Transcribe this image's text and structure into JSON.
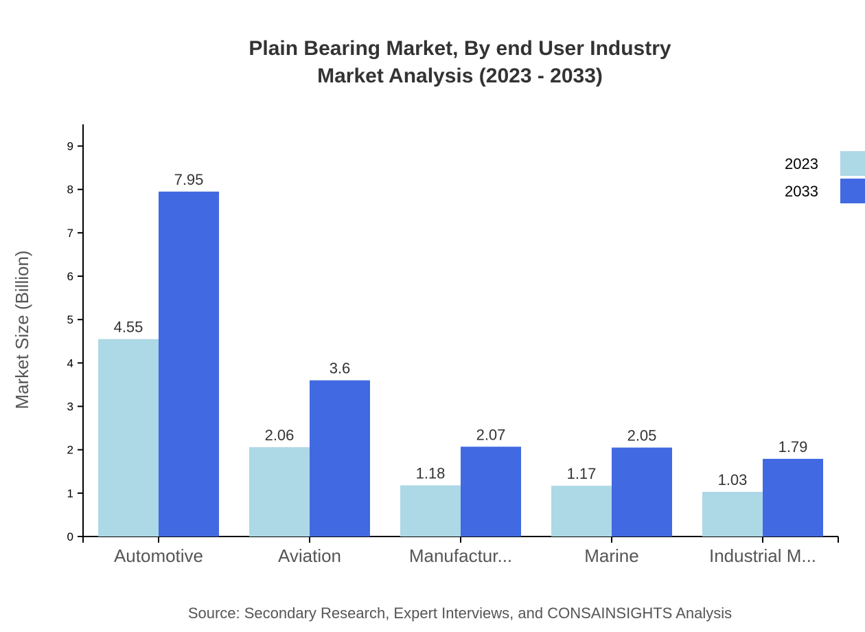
{
  "chart_data": {
    "type": "bar",
    "title": "Plain Bearing Market, By end User Industry",
    "subtitle": "Market Analysis (2023 - 2033)",
    "xlabel": "",
    "ylabel": "Market Size (Billion)",
    "ylim": [
      0,
      9.5
    ],
    "yticks": [
      0,
      1,
      2,
      3,
      4,
      5,
      6,
      7,
      8,
      9
    ],
    "categories": [
      "Automotive",
      "Aviation",
      "Manufactur...",
      "Marine",
      "Industrial M..."
    ],
    "series": [
      {
        "name": "2023",
        "color": "#add8e6",
        "values": [
          4.55,
          2.06,
          1.18,
          1.17,
          1.03
        ]
      },
      {
        "name": "2033",
        "color": "#4169e1",
        "values": [
          7.95,
          3.6,
          2.07,
          2.05,
          1.79
        ]
      }
    ],
    "legend_position": "top-right",
    "grid": false,
    "source": "Source: Secondary Research, Expert Interviews, and CONSAINSIGHTS Analysis"
  }
}
